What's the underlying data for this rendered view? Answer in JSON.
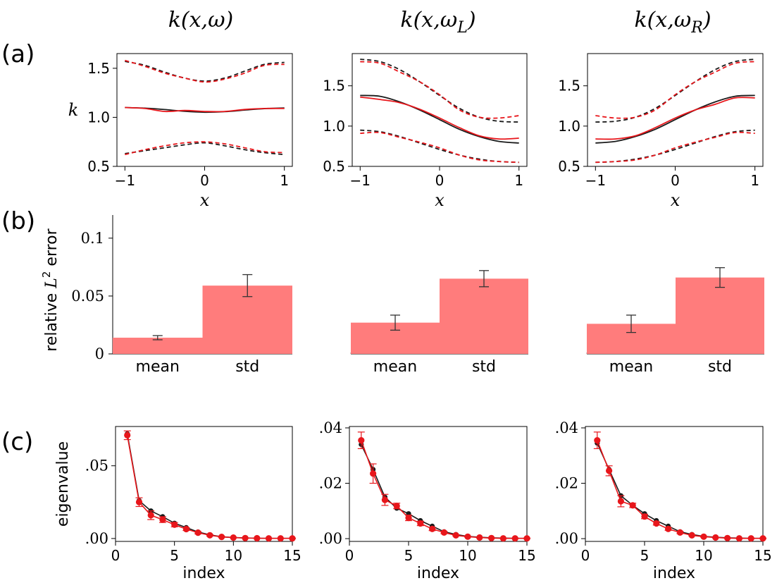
{
  "panel_labels": [
    "(a)",
    "(b)",
    "(c)"
  ],
  "column_titles": [
    {
      "main": "k(x,ω)",
      "sub": ""
    },
    {
      "main": "k(x,ω",
      "sub": "L"
    },
    {
      "main": "k(x,ω",
      "sub": "R"
    }
  ],
  "colors": {
    "reference": "#1a1a1a",
    "prediction": "#e8161b",
    "bar": "#ff7c7c",
    "errorbar": "#333333"
  },
  "chart_data": [
    {
      "panel": "a",
      "column": 1,
      "type": "line",
      "xlabel": "x",
      "ylabel": "k",
      "xlim": [
        -1.1,
        1.1
      ],
      "ylim": [
        0.5,
        1.65
      ],
      "xticks": [
        -1,
        0,
        1
      ],
      "yticks": [
        0.5,
        1.0,
        1.5
      ],
      "ytick_labels": [
        "0.5",
        "1.0",
        "1.5"
      ],
      "x": [
        -1,
        -0.75,
        -0.5,
        -0.25,
        0,
        0.25,
        0.5,
        0.75,
        1
      ],
      "series": [
        {
          "role": "reference-mean",
          "style": "solid",
          "color": "#1a1a1a",
          "values": [
            1.1,
            1.094,
            1.079,
            1.061,
            1.052,
            1.058,
            1.074,
            1.089,
            1.095
          ]
        },
        {
          "role": "reference-upper",
          "style": "dashed",
          "color": "#1a1a1a",
          "values": [
            1.57,
            1.53,
            1.46,
            1.4,
            1.37,
            1.4,
            1.47,
            1.54,
            1.56
          ]
        },
        {
          "role": "reference-lower",
          "style": "dashed",
          "color": "#1a1a1a",
          "values": [
            0.63,
            0.66,
            0.69,
            0.72,
            0.74,
            0.71,
            0.67,
            0.64,
            0.62
          ]
        },
        {
          "role": "predicted-mean",
          "style": "solid",
          "color": "#e8161b",
          "values": [
            1.1,
            1.09,
            1.06,
            1.07,
            1.06,
            1.06,
            1.08,
            1.09,
            1.09
          ]
        },
        {
          "role": "predicted-upper",
          "style": "dashed",
          "color": "#e8161b",
          "values": [
            1.58,
            1.52,
            1.45,
            1.4,
            1.36,
            1.39,
            1.45,
            1.53,
            1.54
          ]
        },
        {
          "role": "predicted-lower",
          "style": "dashed",
          "color": "#e8161b",
          "values": [
            0.62,
            0.67,
            0.71,
            0.74,
            0.75,
            0.73,
            0.69,
            0.65,
            0.64
          ]
        }
      ]
    },
    {
      "panel": "a",
      "column": 2,
      "type": "line",
      "xlabel": "x",
      "xlim": [
        -1.1,
        1.1
      ],
      "ylim": [
        0.5,
        1.9
      ],
      "xticks": [
        -1,
        0,
        1
      ],
      "yticks": [
        0.5,
        1.0,
        1.5
      ],
      "ytick_labels": [
        "0.5",
        "1.0",
        "1.5"
      ],
      "x": [
        -1,
        -0.75,
        -0.5,
        -0.25,
        0,
        0.25,
        0.5,
        0.75,
        1
      ],
      "series": [
        {
          "role": "reference-mean",
          "style": "solid",
          "color": "#1a1a1a",
          "values": [
            1.38,
            1.37,
            1.3,
            1.2,
            1.08,
            0.96,
            0.87,
            0.81,
            0.79
          ]
        },
        {
          "role": "reference-upper",
          "style": "dashed",
          "color": "#1a1a1a",
          "values": [
            1.83,
            1.8,
            1.7,
            1.55,
            1.38,
            1.22,
            1.11,
            1.06,
            1.05
          ]
        },
        {
          "role": "reference-lower",
          "style": "dashed",
          "color": "#1a1a1a",
          "values": [
            0.95,
            0.93,
            0.87,
            0.79,
            0.71,
            0.64,
            0.59,
            0.56,
            0.55
          ]
        },
        {
          "role": "predicted-mean",
          "style": "solid",
          "color": "#e8161b",
          "values": [
            1.36,
            1.33,
            1.29,
            1.21,
            1.1,
            0.98,
            0.88,
            0.84,
            0.85
          ]
        },
        {
          "role": "predicted-upper",
          "style": "dashed",
          "color": "#e8161b",
          "values": [
            1.8,
            1.78,
            1.67,
            1.55,
            1.39,
            1.2,
            1.11,
            1.1,
            1.13
          ]
        },
        {
          "role": "predicted-lower",
          "style": "dashed",
          "color": "#e8161b",
          "values": [
            0.91,
            0.92,
            0.86,
            0.8,
            0.73,
            0.64,
            0.58,
            0.56,
            0.55
          ]
        }
      ]
    },
    {
      "panel": "a",
      "column": 3,
      "type": "line",
      "xlabel": "x",
      "xlim": [
        -1.1,
        1.1
      ],
      "ylim": [
        0.5,
        1.9
      ],
      "xticks": [
        -1,
        0,
        1
      ],
      "yticks": [
        0.5,
        1.0,
        1.5
      ],
      "ytick_labels": [
        "0.5",
        "1.0",
        "1.5"
      ],
      "x": [
        -1,
        -0.75,
        -0.5,
        -0.25,
        0,
        0.25,
        0.5,
        0.75,
        1
      ],
      "series": [
        {
          "role": "reference-mean",
          "style": "solid",
          "color": "#1a1a1a",
          "values": [
            0.79,
            0.81,
            0.87,
            0.96,
            1.08,
            1.2,
            1.3,
            1.37,
            1.38
          ]
        },
        {
          "role": "reference-upper",
          "style": "dashed",
          "color": "#1a1a1a",
          "values": [
            1.05,
            1.06,
            1.11,
            1.22,
            1.38,
            1.55,
            1.7,
            1.8,
            1.83
          ]
        },
        {
          "role": "reference-lower",
          "style": "dashed",
          "color": "#1a1a1a",
          "values": [
            0.55,
            0.56,
            0.59,
            0.64,
            0.71,
            0.79,
            0.87,
            0.93,
            0.95
          ]
        },
        {
          "role": "predicted-mean",
          "style": "solid",
          "color": "#e8161b",
          "values": [
            0.84,
            0.84,
            0.88,
            0.98,
            1.1,
            1.2,
            1.27,
            1.35,
            1.35
          ]
        },
        {
          "role": "predicted-upper",
          "style": "dashed",
          "color": "#e8161b",
          "values": [
            1.13,
            1.1,
            1.11,
            1.2,
            1.39,
            1.55,
            1.67,
            1.78,
            1.8
          ]
        },
        {
          "role": "predicted-lower",
          "style": "dashed",
          "color": "#e8161b",
          "values": [
            0.55,
            0.56,
            0.58,
            0.64,
            0.73,
            0.8,
            0.86,
            0.92,
            0.91
          ]
        }
      ]
    },
    {
      "panel": "b",
      "column": 1,
      "type": "bar",
      "ylabel_main": "relative ",
      "ylabel_symbol": "L",
      "ylabel_sup": "2",
      "ylabel_tail": " error",
      "categories": [
        "mean",
        "std"
      ],
      "values": [
        0.014,
        0.059
      ],
      "errors": [
        0.0018,
        0.0095
      ],
      "ylim": [
        0,
        0.12
      ],
      "yticks": [
        0,
        0.05,
        0.1
      ],
      "ytick_labels": [
        "0",
        "0.05",
        "0.1"
      ]
    },
    {
      "panel": "b",
      "column": 2,
      "type": "bar",
      "categories": [
        "mean",
        "std"
      ],
      "values": [
        0.027,
        0.065
      ],
      "errors": [
        0.0065,
        0.007
      ],
      "ylim": [
        0,
        0.12
      ]
    },
    {
      "panel": "b",
      "column": 3,
      "type": "bar",
      "categories": [
        "mean",
        "std"
      ],
      "values": [
        0.026,
        0.066
      ],
      "errors": [
        0.0075,
        0.0085
      ],
      "ylim": [
        0,
        0.12
      ]
    },
    {
      "panel": "c",
      "column": 1,
      "type": "line",
      "xlabel": "index",
      "ylabel": "eigenvalue",
      "xlim": [
        0,
        15
      ],
      "ylim": [
        -0.002,
        0.077
      ],
      "xticks": [
        0,
        5,
        10,
        15
      ],
      "yticks": [
        0,
        0.05
      ],
      "ytick_labels": [
        ".00",
        ".05"
      ],
      "x": [
        1,
        2,
        3,
        4,
        5,
        6,
        7,
        8,
        9,
        10,
        11,
        12,
        13,
        14,
        15
      ],
      "series": [
        {
          "role": "reference",
          "color": "#1a1a1a",
          "values": [
            0.072,
            0.026,
            0.019,
            0.015,
            0.0105,
            0.0075,
            0.0045,
            0.0025,
            0.0012,
            0.0007,
            0.0004,
            0.0002,
            0.0001,
            0.0001,
            0.0001
          ]
        },
        {
          "role": "predicted",
          "color": "#e8161b",
          "values": [
            0.071,
            0.025,
            0.016,
            0.013,
            0.0095,
            0.0065,
            0.004,
            0.0022,
            0.0011,
            0.0006,
            0.0003,
            0.0002,
            0.0001,
            0.0001,
            0.0001
          ]
        }
      ],
      "errors": [
        0.003,
        0.003,
        0.003,
        0.002,
        0.0015,
        0.001,
        0.0008,
        0.0005,
        0.0003,
        0.0002,
        0.0001,
        0.0001,
        0.0001,
        0.0001,
        0.0001
      ]
    },
    {
      "panel": "c",
      "column": 2,
      "type": "line",
      "xlabel": "index",
      "xlim": [
        0,
        15
      ],
      "ylim": [
        -0.001,
        0.0405
      ],
      "xticks": [
        0,
        5,
        10,
        15
      ],
      "yticks": [
        0,
        0.02,
        0.04
      ],
      "ytick_labels": [
        ".00",
        ".02",
        ".04"
      ],
      "x": [
        1,
        2,
        3,
        4,
        5,
        6,
        7,
        8,
        9,
        10,
        11,
        12,
        13,
        14,
        15
      ],
      "series": [
        {
          "role": "reference",
          "color": "#1a1a1a",
          "values": [
            0.034,
            0.025,
            0.015,
            0.011,
            0.009,
            0.0065,
            0.0045,
            0.0025,
            0.0015,
            0.0008,
            0.0005,
            0.0003,
            0.0002,
            0.0001,
            0.0001
          ]
        },
        {
          "role": "predicted",
          "color": "#e8161b",
          "values": [
            0.0355,
            0.0235,
            0.014,
            0.0118,
            0.0075,
            0.0055,
            0.0035,
            0.0022,
            0.0012,
            0.0007,
            0.0004,
            0.0002,
            0.0001,
            0.0001,
            0.0001
          ]
        }
      ],
      "errors": [
        0.003,
        0.0035,
        0.002,
        0.001,
        0.001,
        0.0008,
        0.0006,
        0.0004,
        0.0002,
        0.0001,
        0.0001,
        0.0001,
        0.0001,
        0.0001,
        0.0001
      ]
    },
    {
      "panel": "c",
      "column": 3,
      "type": "line",
      "xlabel": "index",
      "xlim": [
        0,
        15
      ],
      "ylim": [
        -0.001,
        0.0405
      ],
      "xticks": [
        0,
        5,
        10,
        15
      ],
      "yticks": [
        0,
        0.02,
        0.04
      ],
      "ytick_labels": [
        ".00",
        ".02",
        ".04"
      ],
      "x": [
        1,
        2,
        3,
        4,
        5,
        6,
        7,
        8,
        9,
        10,
        11,
        12,
        13,
        14,
        15
      ],
      "series": [
        {
          "role": "reference",
          "color": "#1a1a1a",
          "values": [
            0.0345,
            0.025,
            0.0155,
            0.012,
            0.009,
            0.0065,
            0.0045,
            0.0025,
            0.0015,
            0.0008,
            0.0005,
            0.0003,
            0.0002,
            0.0001,
            0.0001
          ]
        },
        {
          "role": "predicted",
          "color": "#e8161b",
          "values": [
            0.0355,
            0.0245,
            0.0135,
            0.012,
            0.008,
            0.0055,
            0.0035,
            0.0022,
            0.0012,
            0.0007,
            0.0004,
            0.0002,
            0.0001,
            0.0001,
            0.0001
          ]
        }
      ],
      "errors": [
        0.003,
        0.0018,
        0.002,
        0.0008,
        0.0008,
        0.0006,
        0.0005,
        0.0004,
        0.0002,
        0.0001,
        0.0001,
        0.0001,
        0.0001,
        0.0001,
        0.0001
      ]
    }
  ]
}
